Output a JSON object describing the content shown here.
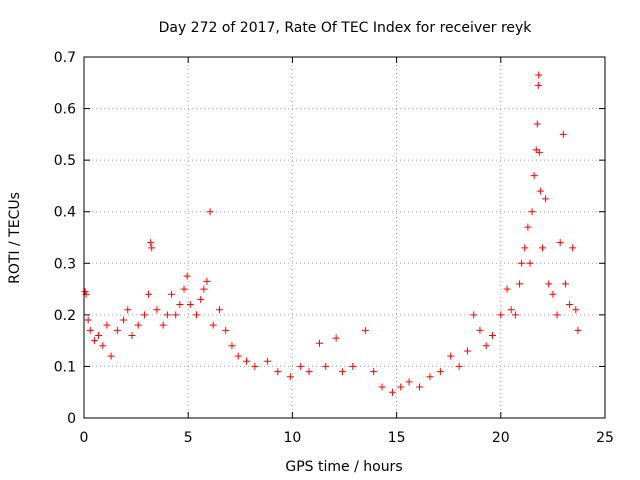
{
  "chart_data": {
    "type": "scatter",
    "title": "Day 272 of 2017, Rate Of TEC Index for receiver reyk",
    "xlabel": "GPS time / hours",
    "ylabel": "ROTI / TECUs",
    "xlim": [
      0,
      25
    ],
    "ylim": [
      0,
      0.7
    ],
    "xticks": [
      0,
      5,
      10,
      15,
      20,
      25
    ],
    "yticks": [
      0,
      0.1,
      0.2,
      0.3,
      0.4,
      0.5,
      0.6,
      0.7
    ],
    "xtick_labels": [
      "0",
      "5",
      "10",
      "15",
      "20",
      "25"
    ],
    "ytick_labels": [
      "0",
      "0.1",
      "0.2",
      "0.3",
      "0.4",
      "0.5",
      "0.6",
      "0.7"
    ],
    "grid": true,
    "marker": "+",
    "color": "#ff0000",
    "series": [
      {
        "points": [
          [
            0.05,
            0.245
          ],
          [
            0.1,
            0.24
          ],
          [
            0.2,
            0.19
          ],
          [
            0.3,
            0.17
          ],
          [
            0.5,
            0.15
          ],
          [
            0.7,
            0.16
          ],
          [
            0.9,
            0.14
          ],
          [
            1.1,
            0.18
          ],
          [
            1.3,
            0.12
          ],
          [
            1.6,
            0.17
          ],
          [
            1.9,
            0.19
          ],
          [
            2.1,
            0.21
          ],
          [
            2.3,
            0.16
          ],
          [
            2.6,
            0.18
          ],
          [
            2.9,
            0.2
          ],
          [
            3.1,
            0.24
          ],
          [
            3.2,
            0.34
          ],
          [
            3.25,
            0.33
          ],
          [
            3.5,
            0.21
          ],
          [
            3.8,
            0.18
          ],
          [
            4.0,
            0.2
          ],
          [
            4.2,
            0.24
          ],
          [
            4.4,
            0.2
          ],
          [
            4.6,
            0.22
          ],
          [
            4.8,
            0.25
          ],
          [
            4.95,
            0.275
          ],
          [
            5.1,
            0.22
          ],
          [
            5.4,
            0.2
          ],
          [
            5.6,
            0.23
          ],
          [
            5.75,
            0.25
          ],
          [
            5.9,
            0.265
          ],
          [
            6.05,
            0.4
          ],
          [
            6.2,
            0.18
          ],
          [
            6.5,
            0.21
          ],
          [
            6.8,
            0.17
          ],
          [
            7.1,
            0.14
          ],
          [
            7.4,
            0.12
          ],
          [
            7.8,
            0.11
          ],
          [
            8.2,
            0.1
          ],
          [
            8.8,
            0.11
          ],
          [
            9.3,
            0.09
          ],
          [
            9.9,
            0.08
          ],
          [
            10.4,
            0.1
          ],
          [
            10.8,
            0.09
          ],
          [
            11.3,
            0.145
          ],
          [
            11.6,
            0.1
          ],
          [
            12.1,
            0.155
          ],
          [
            12.4,
            0.09
          ],
          [
            12.9,
            0.1
          ],
          [
            13.5,
            0.17
          ],
          [
            13.9,
            0.09
          ],
          [
            14.3,
            0.06
          ],
          [
            14.8,
            0.05
          ],
          [
            15.2,
            0.06
          ],
          [
            15.6,
            0.07
          ],
          [
            16.1,
            0.06
          ],
          [
            16.6,
            0.08
          ],
          [
            17.1,
            0.09
          ],
          [
            17.6,
            0.12
          ],
          [
            18.0,
            0.1
          ],
          [
            18.4,
            0.13
          ],
          [
            18.7,
            0.2
          ],
          [
            19.0,
            0.17
          ],
          [
            19.3,
            0.14
          ],
          [
            19.6,
            0.16
          ],
          [
            20.0,
            0.2
          ],
          [
            20.3,
            0.25
          ],
          [
            20.5,
            0.21
          ],
          [
            20.7,
            0.2
          ],
          [
            20.9,
            0.26
          ],
          [
            21.0,
            0.3
          ],
          [
            21.15,
            0.33
          ],
          [
            21.3,
            0.37
          ],
          [
            21.4,
            0.3
          ],
          [
            21.5,
            0.4
          ],
          [
            21.6,
            0.47
          ],
          [
            21.7,
            0.52
          ],
          [
            21.75,
            0.57
          ],
          [
            21.8,
            0.645
          ],
          [
            21.82,
            0.665
          ],
          [
            21.85,
            0.515
          ],
          [
            21.9,
            0.44
          ],
          [
            22.0,
            0.33
          ],
          [
            22.15,
            0.425
          ],
          [
            22.3,
            0.26
          ],
          [
            22.5,
            0.24
          ],
          [
            22.7,
            0.2
          ],
          [
            22.85,
            0.34
          ],
          [
            23.0,
            0.55
          ],
          [
            23.1,
            0.26
          ],
          [
            23.3,
            0.22
          ],
          [
            23.45,
            0.33
          ],
          [
            23.6,
            0.21
          ],
          [
            23.7,
            0.17
          ]
        ]
      }
    ]
  }
}
